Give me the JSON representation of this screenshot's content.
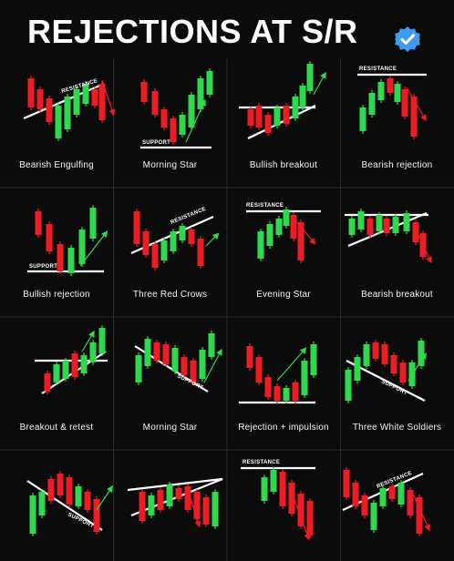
{
  "title": "REJECTIONS AT S/R",
  "colors": {
    "background": "#0b0b0b",
    "bull": "#2fd94d",
    "bear": "#ee1c24",
    "line": "#ffffff",
    "arrow_green": "#2fd94d",
    "arrow_red": "#ee1c24"
  },
  "patterns": [
    {
      "name": "Bearish Engulfing",
      "label": "RESISTANCE"
    },
    {
      "name": "Morning Star",
      "label": "SUPPORT"
    },
    {
      "name": "Bullish breakout",
      "label": ""
    },
    {
      "name": "Bearish rejection",
      "label": "RESISTANCE"
    },
    {
      "name": "Bullish rejection",
      "label": "SUPPORT"
    },
    {
      "name": "Three Red Crows",
      "label": "RESISTANCE"
    },
    {
      "name": "Evening Star",
      "label": "RESISTANCE"
    },
    {
      "name": "Bearish breakout",
      "label": ""
    },
    {
      "name": "Breakout & retest",
      "label": ""
    },
    {
      "name": "Morning Star",
      "label": "SUPPORT"
    },
    {
      "name": "Rejection + impulsion",
      "label": ""
    },
    {
      "name": "Three White Soldiers",
      "label": "SUPPORT"
    },
    {
      "name": "",
      "label": "SUPPORT"
    },
    {
      "name": "",
      "label": ""
    },
    {
      "name": "",
      "label": "RESISTANCE"
    },
    {
      "name": "",
      "label": "RESISTANCE"
    }
  ]
}
